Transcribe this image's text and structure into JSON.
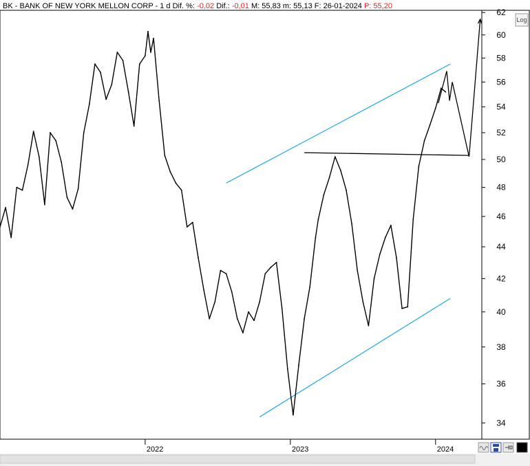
{
  "header": {
    "ticker": "BK",
    "name": "BANK OF NEW YORK MELLON CORP",
    "interval": "1 d",
    "dif_pct_label": "Dif. %:",
    "dif_pct": "-0,02",
    "dif_label": "Dif.:",
    "dif": "-0,01",
    "max_label": "M:",
    "max": "55,83",
    "min_label": "m:",
    "min": "55,13",
    "date_label": "F:",
    "date": "26-01-2024",
    "price_label": "P:",
    "price": "55,20"
  },
  "log_button": "Log",
  "colors": {
    "price": "#000000",
    "channel": "#1aa8e0",
    "negative": "#e0201a",
    "axis": "#000000"
  },
  "chart_data": {
    "type": "line",
    "title": "",
    "xlabel": "",
    "ylabel": "",
    "x_range": [
      "2021-01-04",
      "2024-04-26"
    ],
    "ylim": [
      33.2,
      62.2
    ],
    "y_scale": "log",
    "y_ticks": [
      34,
      36,
      38,
      40,
      42,
      44,
      46,
      48,
      50,
      52,
      54,
      56,
      58,
      60,
      62
    ],
    "x_ticks": [
      {
        "date": "2022-01-03",
        "label": "2022"
      },
      {
        "date": "2023-01-02",
        "label": "2023"
      },
      {
        "date": "2024-01-01",
        "label": "2024"
      }
    ],
    "series": [
      {
        "color": "#000000",
        "x": [
          "2021-01-04",
          "2021-01-18",
          "2021-02-01",
          "2021-02-15",
          "2021-03-01",
          "2021-03-15",
          "2021-03-29",
          "2021-04-12",
          "2021-04-26",
          "2021-05-10",
          "2021-05-24",
          "2021-06-07",
          "2021-06-21",
          "2021-07-05",
          "2021-07-19",
          "2021-08-02",
          "2021-08-16",
          "2021-08-30",
          "2021-09-13",
          "2021-09-27",
          "2021-10-11",
          "2021-10-25",
          "2021-11-08",
          "2021-11-22",
          "2021-12-06",
          "2021-12-20",
          "2022-01-03",
          "2022-01-10",
          "2022-01-17",
          "2022-01-24",
          "2022-02-07",
          "2022-02-21",
          "2022-03-07",
          "2022-03-21",
          "2022-04-04",
          "2022-04-18",
          "2022-05-02",
          "2022-05-16",
          "2022-05-30",
          "2022-06-13",
          "2022-06-27",
          "2022-07-11",
          "2022-07-25",
          "2022-08-08",
          "2022-08-22",
          "2022-09-05",
          "2022-09-19",
          "2022-10-03",
          "2022-10-17",
          "2022-10-31",
          "2022-11-14",
          "2022-11-28",
          "2022-12-12",
          "2022-12-26",
          "2023-01-09",
          "2023-01-23",
          "2023-02-06",
          "2023-02-20",
          "2023-03-06",
          "2023-03-13",
          "2023-03-27",
          "2023-04-10",
          "2023-04-24",
          "2023-05-08",
          "2023-05-22",
          "2023-06-05",
          "2023-06-19",
          "2023-07-03",
          "2023-07-17",
          "2023-07-31",
          "2023-08-14",
          "2023-08-28",
          "2023-09-11",
          "2023-09-25",
          "2023-10-09",
          "2023-10-23",
          "2023-11-06",
          "2023-11-20",
          "2023-12-04",
          "2023-12-18",
          "2024-01-01",
          "2024-01-15",
          "2024-01-26"
        ],
        "values": [
          45.3,
          46.6,
          44.6,
          48.0,
          47.8,
          49.6,
          52.1,
          50.2,
          46.8,
          52.0,
          51.4,
          49.8,
          47.3,
          46.5,
          47.9,
          52.0,
          54.2,
          57.5,
          56.8,
          54.6,
          55.8,
          58.5,
          57.8,
          55.2,
          52.5,
          57.5,
          58.2,
          60.3,
          58.5,
          59.7,
          54.5,
          50.3,
          49.1,
          48.3,
          47.8,
          45.3,
          45.6,
          43.3,
          41.3,
          39.6,
          40.6,
          42.5,
          42.3,
          41.2,
          39.6,
          38.8,
          40.0,
          39.5,
          40.6,
          42.3,
          42.7,
          43.0,
          40.2,
          36.8,
          34.4,
          37.0,
          39.6,
          41.5,
          44.6,
          45.8,
          47.5,
          48.7,
          50.2,
          49.2,
          47.8,
          45.5,
          42.5,
          40.6,
          39.2,
          42.0,
          43.5,
          44.6,
          45.4,
          43.3,
          40.2,
          40.3,
          45.8,
          49.5,
          51.4,
          52.6,
          53.9,
          55.5,
          55.2
        ]
      }
    ],
    "annotations": [
      {
        "type": "trendline",
        "color": "#1aa8e0",
        "points": [
          [
            "2022-07-25",
            48.3
          ],
          [
            "2024-02-07",
            57.5
          ]
        ]
      },
      {
        "type": "trendline",
        "color": "#1aa8e0",
        "points": [
          [
            "2022-10-17",
            34.3
          ],
          [
            "2024-02-07",
            40.8
          ]
        ]
      },
      {
        "type": "horizontal",
        "color": "#000000",
        "points": [
          [
            "2023-02-06",
            50.5
          ],
          [
            "2024-03-25",
            50.3
          ]
        ]
      },
      {
        "type": "projection",
        "color": "#000000",
        "points": [
          [
            "2024-01-08",
            54.3
          ],
          [
            "2024-01-29",
            56.9
          ],
          [
            "2024-02-05",
            54.5
          ],
          [
            "2024-02-12",
            56.0
          ],
          [
            "2024-03-25",
            50.2
          ],
          [
            "2024-04-22",
            61.4
          ]
        ]
      }
    ]
  }
}
